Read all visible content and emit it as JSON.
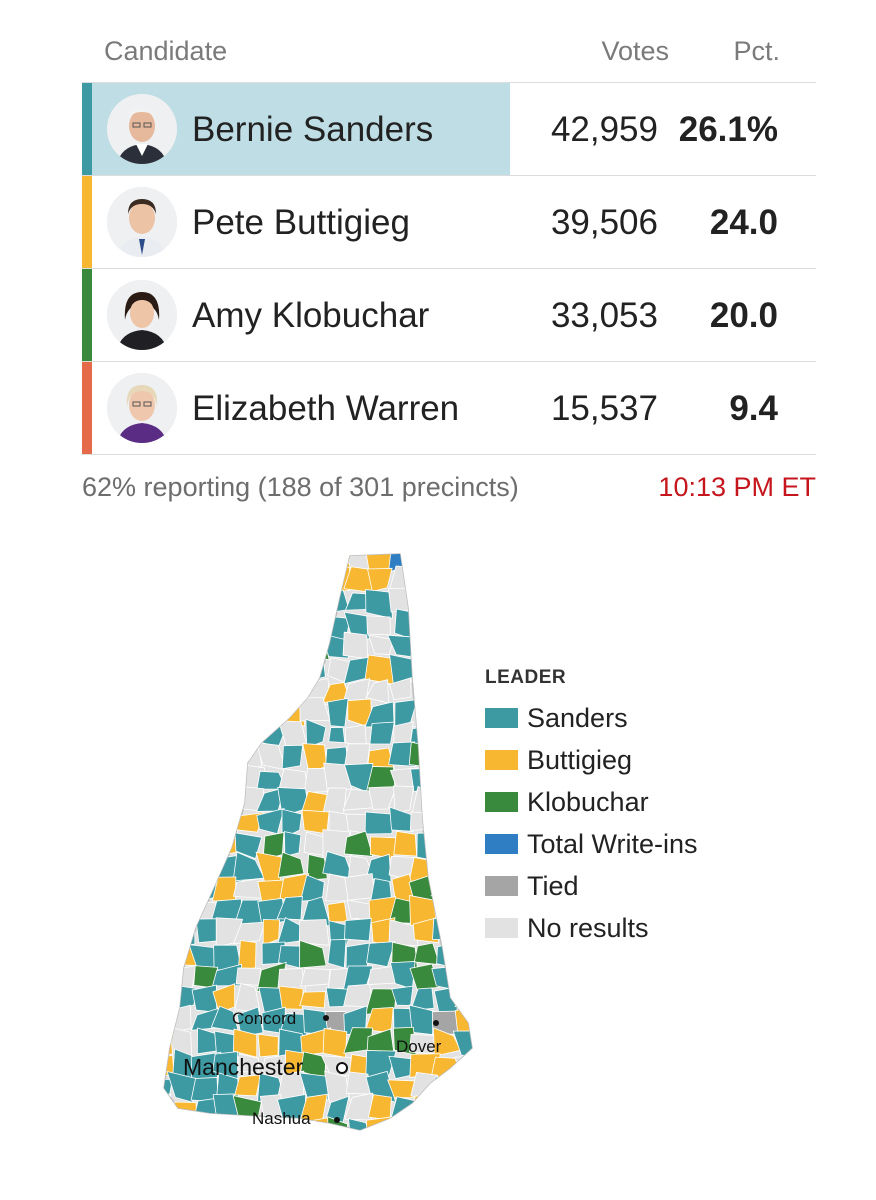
{
  "table": {
    "headers": {
      "candidate": "Candidate",
      "votes": "Votes",
      "pct": "Pct."
    },
    "rows": [
      {
        "name": "Bernie Sanders",
        "votes": "42,959",
        "pct": "26.1%",
        "color": "#3d9aa3",
        "highlight": true
      },
      {
        "name": "Pete Buttigieg",
        "votes": "39,506",
        "pct": "24.0",
        "color": "#f7b731",
        "highlight": false
      },
      {
        "name": "Amy Klobuchar",
        "votes": "33,053",
        "pct": "20.0",
        "color": "#3a8a3e",
        "highlight": false
      },
      {
        "name": "Elizabeth Warren",
        "votes": "15,537",
        "pct": "9.4",
        "color": "#e56a4a",
        "highlight": false
      }
    ]
  },
  "footer": {
    "reporting": "62% reporting (188 of 301 precincts)",
    "time": "10:13 PM ET"
  },
  "map": {
    "cities": [
      "Concord",
      "Manchester",
      "Dover",
      "Nashua"
    ]
  },
  "legend": {
    "title": "LEADER",
    "items": [
      {
        "label": "Sanders",
        "color": "#3d9aa3"
      },
      {
        "label": "Buttigieg",
        "color": "#f7b731"
      },
      {
        "label": "Klobuchar",
        "color": "#3a8a3e"
      },
      {
        "label": "Total Write-ins",
        "color": "#2f7ec4"
      },
      {
        "label": "Tied",
        "color": "#a5a5a5"
      },
      {
        "label": "No results",
        "color": "#e2e2e2"
      }
    ]
  }
}
